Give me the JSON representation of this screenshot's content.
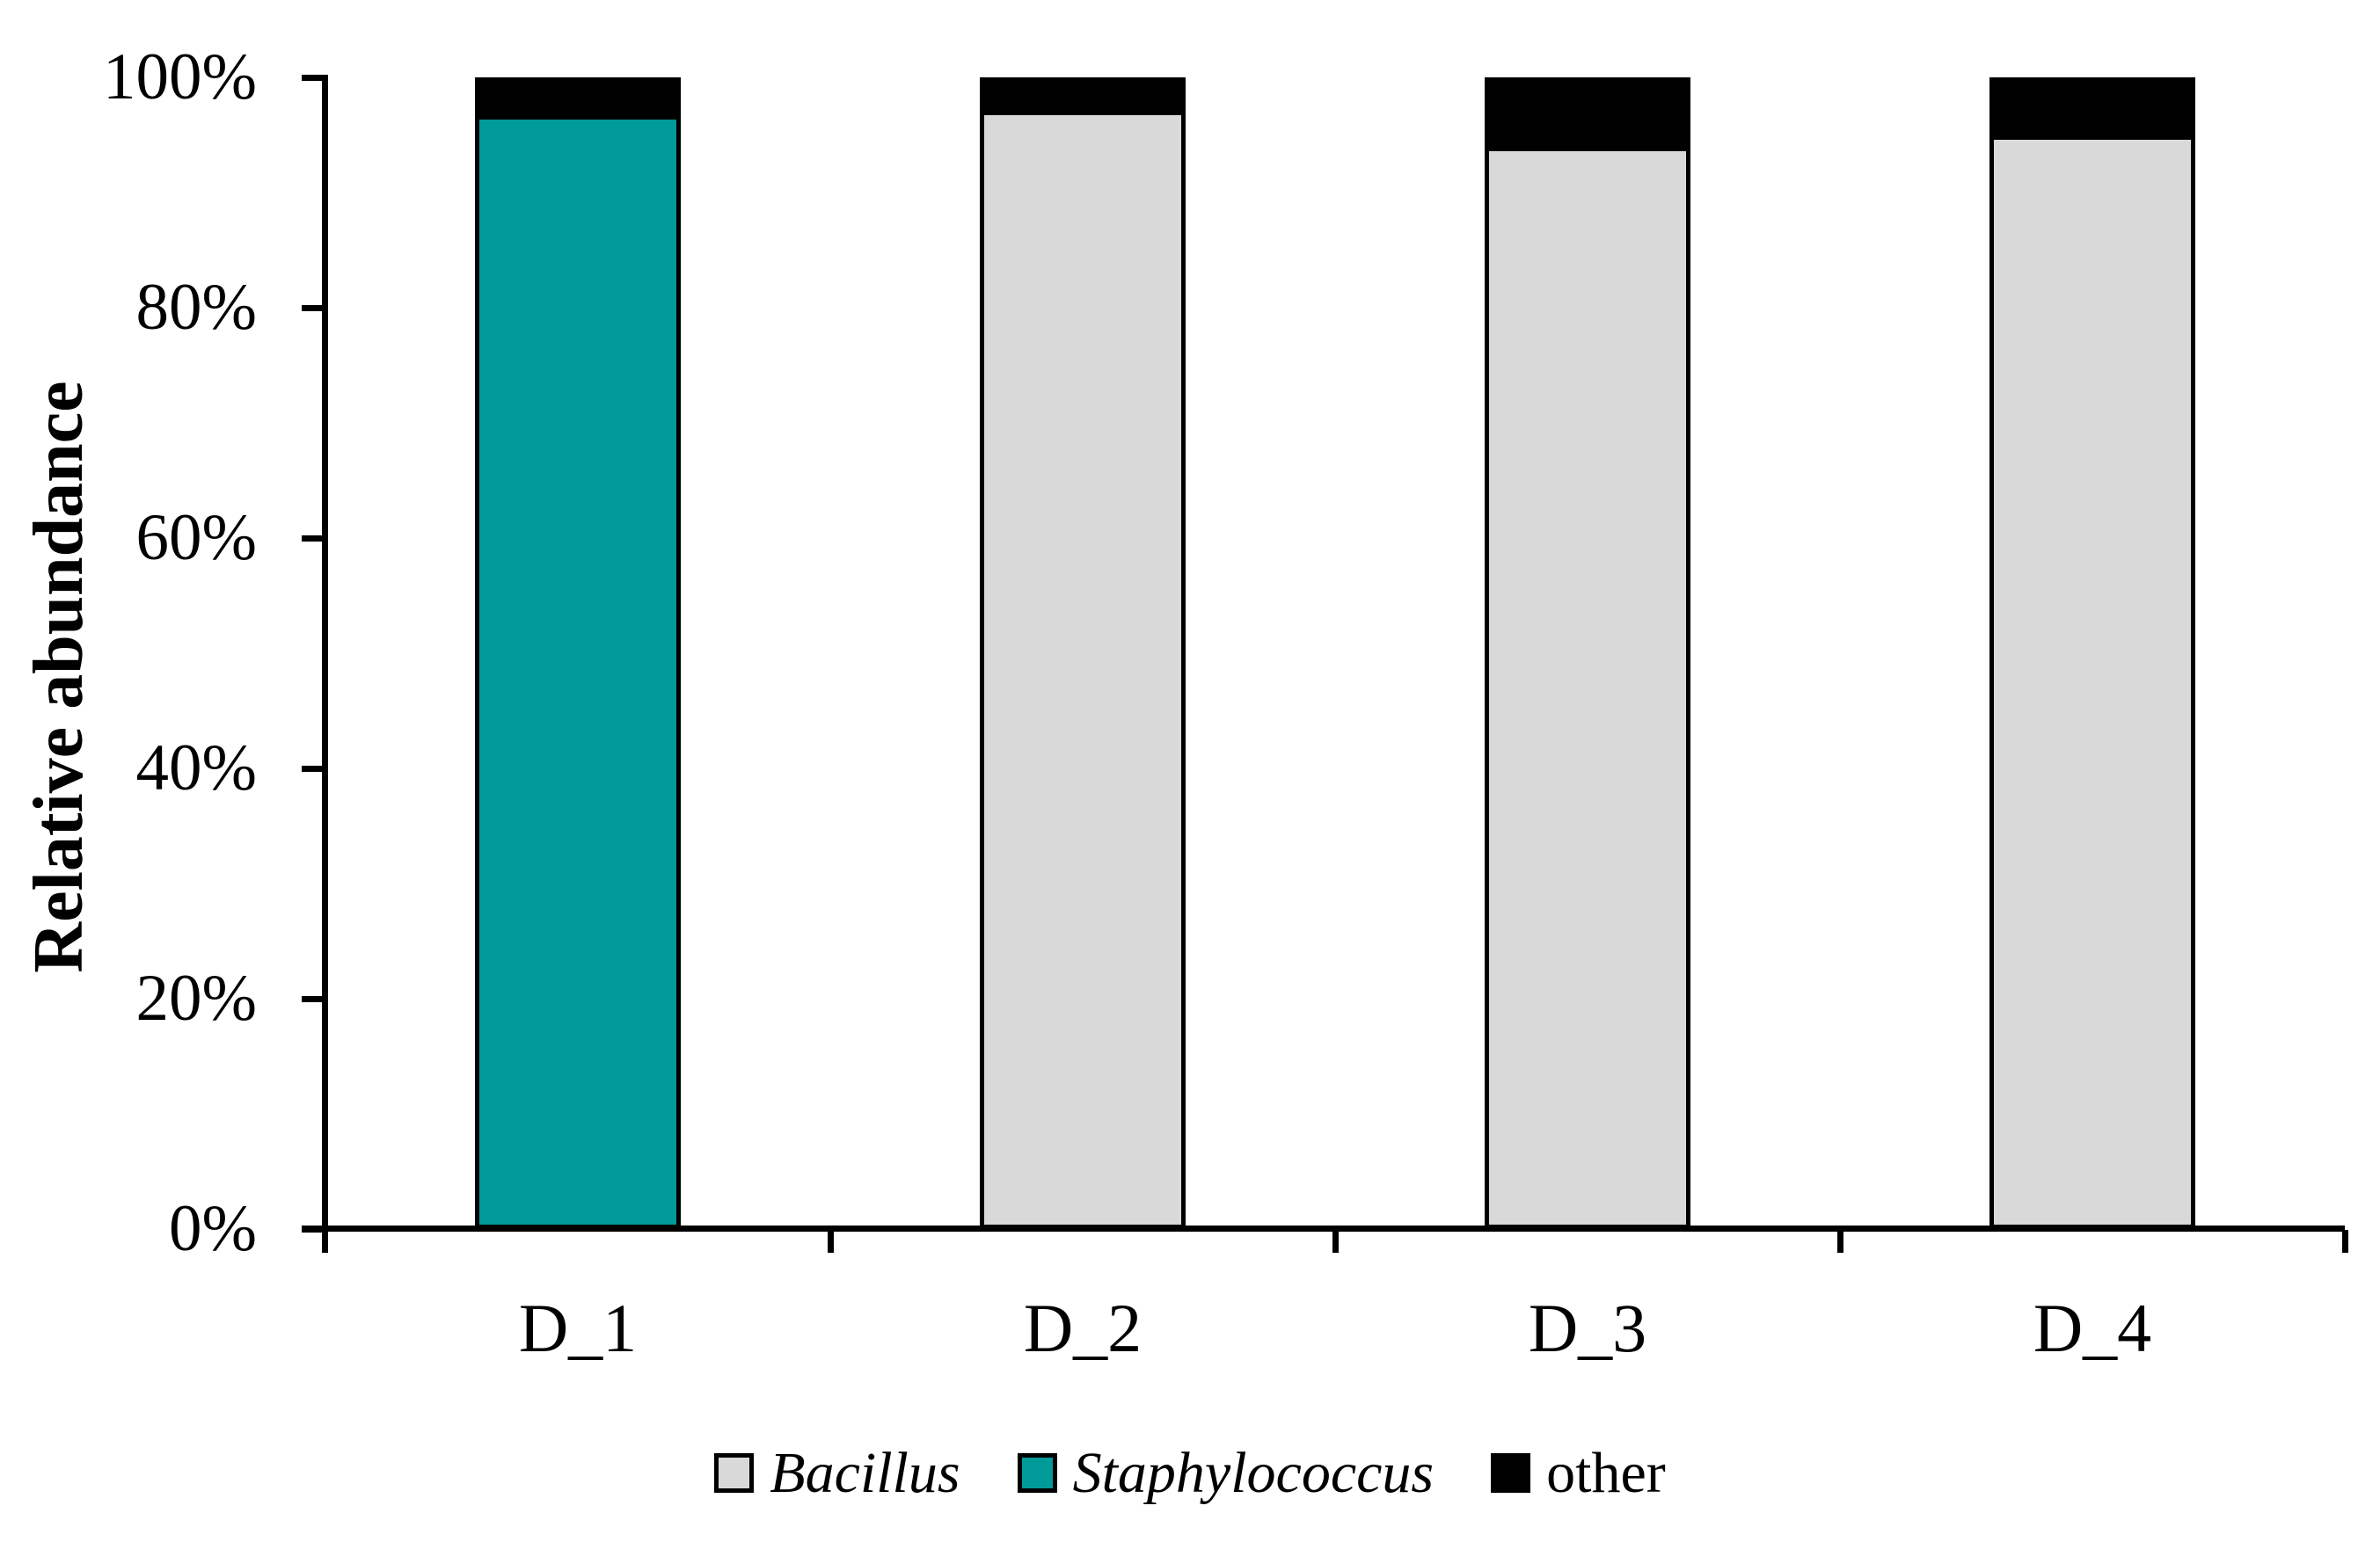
{
  "chart_data": {
    "type": "bar",
    "stacked": true,
    "title": "",
    "categories": [
      "D_1",
      "D_2",
      "D_3",
      "D_4"
    ],
    "series": [
      {
        "name": "Bacillus",
        "color": "#d9d9d9",
        "italic": true,
        "values": [
          0,
          97.1,
          94,
          95
        ]
      },
      {
        "name": "Staphylococcus",
        "color": "#009a99",
        "italic": true,
        "values": [
          96.7,
          0,
          0,
          0
        ]
      },
      {
        "name": "other",
        "color": "#000000",
        "italic": false,
        "values": [
          3.3,
          2.9,
          6,
          5
        ]
      }
    ],
    "xlabel": "",
    "ylabel": "Relative abundance",
    "ylim": [
      0,
      100
    ],
    "ytick_labels": [
      "0%",
      "20%",
      "40%",
      "60%",
      "80%",
      "100%"
    ],
    "grid": false,
    "legend_position": "bottom",
    "axis_color": "#000000",
    "background_color": "#ffffff"
  }
}
